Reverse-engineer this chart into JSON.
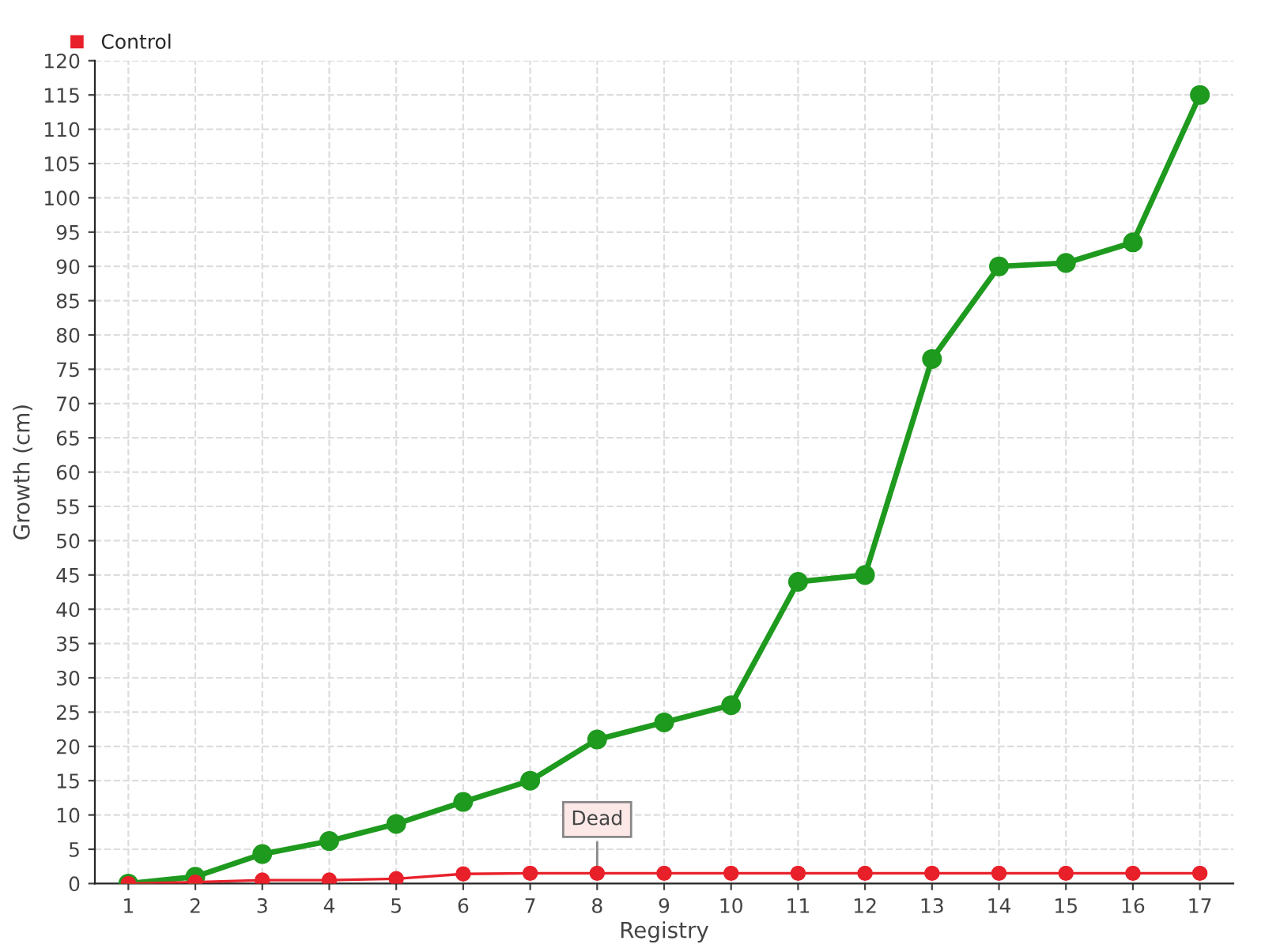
{
  "chart_data": {
    "type": "line",
    "xlabel": "Registry",
    "ylabel": "Growth (cm)",
    "categories": [
      "1",
      "2",
      "3",
      "4",
      "5",
      "6",
      "7",
      "8",
      "9",
      "10",
      "11",
      "12",
      "13",
      "14",
      "15",
      "16",
      "17"
    ],
    "series": [
      {
        "color": "#1e9a1e",
        "values": [
          0,
          1,
          4.3,
          6.2,
          8.7,
          11.9,
          15,
          21,
          23.5,
          26,
          44,
          45,
          76.5,
          90,
          90.5,
          93.5,
          115
        ]
      },
      {
        "name": "Control",
        "color": "#e8202a",
        "values": [
          0,
          0.2,
          0.5,
          0.5,
          0.7,
          1.4,
          1.5,
          1.5,
          1.5,
          1.5,
          1.5,
          1.5,
          1.5,
          1.5,
          1.5,
          1.5,
          1.5
        ]
      }
    ],
    "ylim": [
      0,
      120
    ],
    "yticks": [
      0,
      5,
      10,
      15,
      20,
      25,
      30,
      35,
      40,
      45,
      50,
      55,
      60,
      65,
      70,
      75,
      80,
      85,
      90,
      95,
      100,
      105,
      110,
      115,
      120
    ],
    "annotations": [
      {
        "text": "Dead",
        "x": "8",
        "y": 1.5
      }
    ],
    "grid": true,
    "legend": "top left",
    "marker": "circle",
    "line_style": "solid"
  }
}
